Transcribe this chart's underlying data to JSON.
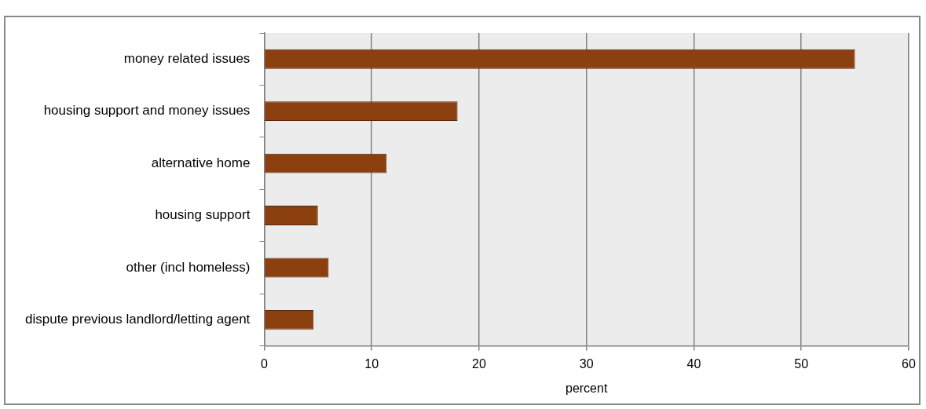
{
  "chart_data": {
    "type": "bar",
    "orientation": "horizontal",
    "xlabel": "percent",
    "categories": [
      "money related issues",
      "housing support and money issues",
      "alternative home",
      "housing support",
      "other (incl homeless)",
      "dispute previous landlord/letting agent"
    ],
    "values": [
      55,
      18,
      11.4,
      5,
      6,
      4.6
    ],
    "color": "#8c4010",
    "xlim": [
      0,
      60
    ],
    "xticks": [
      0,
      10,
      20,
      30,
      40,
      50,
      60
    ],
    "grid": "x",
    "legend": false
  }
}
